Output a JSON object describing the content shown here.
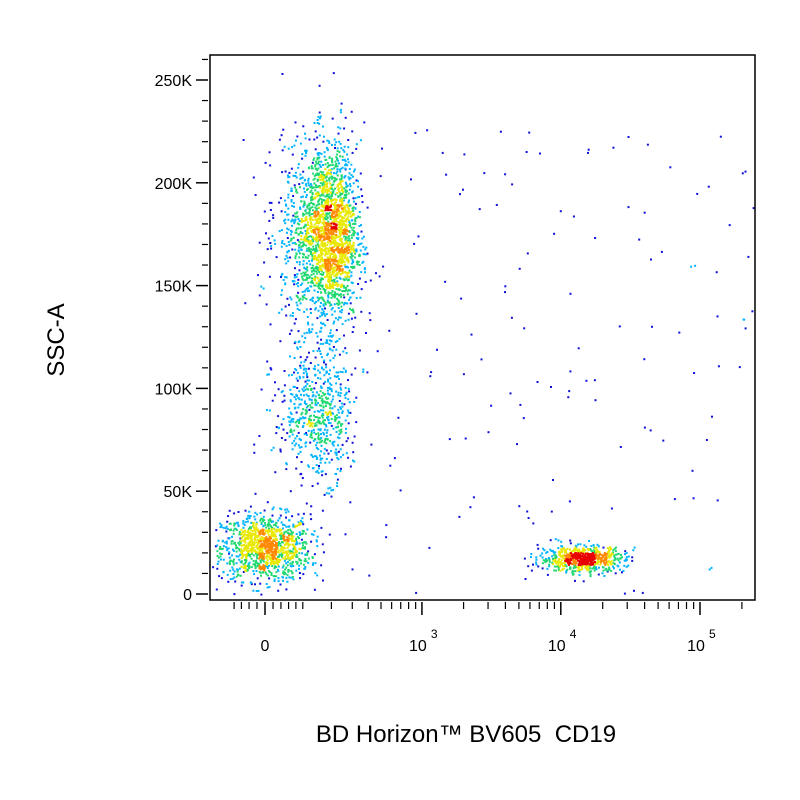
{
  "chart_data": {
    "type": "scatter",
    "xlabel": "BD Horizon™ BV605  CD19",
    "ylabel": "SSC-A",
    "x_scale": "biexponential",
    "y_scale": "linear",
    "ylim": [
      0,
      262144
    ],
    "y_ticks": [
      {
        "value": 0,
        "label": "0"
      },
      {
        "value": 50000,
        "label": "50K"
      },
      {
        "value": 100000,
        "label": "100K"
      },
      {
        "value": 150000,
        "label": "150K"
      },
      {
        "value": 200000,
        "label": "200K"
      },
      {
        "value": 250000,
        "label": "250K"
      }
    ],
    "x_ticks": [
      {
        "value": 0,
        "label": "0",
        "exp": ""
      },
      {
        "value": 1000,
        "label": "10",
        "exp": "3"
      },
      {
        "value": 10000,
        "label": "10",
        "exp": "4"
      },
      {
        "value": 100000,
        "label": "10",
        "exp": "5"
      }
    ],
    "colormap": [
      "#1010d8",
      "#00b4ff",
      "#20d870",
      "#e8e800",
      "#ff8800",
      "#e80000"
    ],
    "populations": [
      {
        "name_hidden": "lymphocytes CD19-",
        "cx": 0,
        "cy": 23000,
        "sx": 60,
        "sy": 8000,
        "n": 1100
      },
      {
        "name_hidden": "granulocytes",
        "cx": 180,
        "cy": 175000,
        "sx": 70,
        "sy": 22000,
        "n": 2200
      },
      {
        "name_hidden": "monocytes",
        "cx": 150,
        "cy": 88000,
        "sx": 65,
        "sy": 16000,
        "n": 600
      },
      {
        "name_hidden": "B cells CD19+",
        "cx": 14000,
        "cy": 17500,
        "sx": 4500,
        "sy": 3200,
        "n": 650
      }
    ]
  }
}
